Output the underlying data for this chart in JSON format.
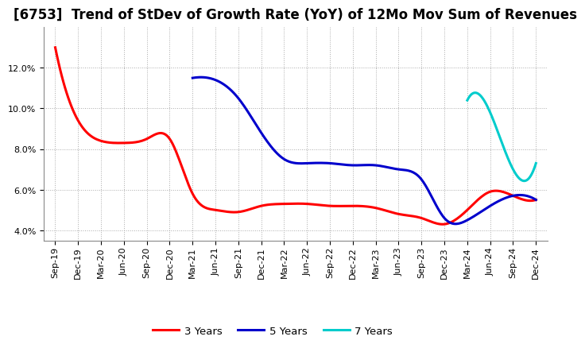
{
  "title": "[6753]  Trend of StDev of Growth Rate (YoY) of 12Mo Mov Sum of Revenues",
  "x_labels": [
    "Sep-19",
    "Dec-19",
    "Mar-20",
    "Jun-20",
    "Sep-20",
    "Dec-20",
    "Mar-21",
    "Jun-21",
    "Sep-21",
    "Dec-21",
    "Mar-22",
    "Jun-22",
    "Sep-22",
    "Dec-22",
    "Mar-23",
    "Jun-23",
    "Sep-23",
    "Dec-23",
    "Mar-24",
    "Jun-24",
    "Sep-24",
    "Dec-24"
  ],
  "series": {
    "3 Years": {
      "color": "#ff0000",
      "data": [
        0.13,
        0.094,
        0.084,
        0.083,
        0.085,
        0.085,
        0.058,
        0.05,
        0.049,
        0.052,
        0.053,
        0.053,
        0.052,
        0.052,
        0.051,
        0.048,
        0.046,
        0.043,
        0.05,
        0.059,
        0.057,
        0.055
      ]
    },
    "5 Years": {
      "color": "#0000cc",
      "data": [
        null,
        null,
        null,
        null,
        null,
        null,
        0.115,
        0.114,
        0.105,
        0.088,
        0.075,
        0.073,
        0.073,
        0.072,
        0.072,
        0.07,
        0.065,
        0.046,
        0.045,
        0.052,
        0.057,
        0.055
      ]
    },
    "7 Years": {
      "color": "#00cccc",
      "data": [
        null,
        null,
        null,
        null,
        null,
        null,
        null,
        null,
        null,
        null,
        null,
        null,
        null,
        null,
        null,
        null,
        null,
        null,
        0.104,
        0.098,
        0.07,
        0.073
      ]
    },
    "10 Years": {
      "color": "#00aa00",
      "data": [
        null,
        null,
        null,
        null,
        null,
        null,
        null,
        null,
        null,
        null,
        null,
        null,
        null,
        null,
        null,
        null,
        null,
        null,
        null,
        null,
        null,
        null
      ]
    }
  },
  "ylim": [
    0.035,
    0.14
  ],
  "yticks": [
    0.04,
    0.06,
    0.08,
    0.1,
    0.12
  ],
  "background_color": "#ffffff",
  "plot_bg_color": "#ffffff",
  "grid_color": "#aaaaaa",
  "title_fontsize": 12,
  "legend_fontsize": 9.5,
  "tick_fontsize": 8
}
